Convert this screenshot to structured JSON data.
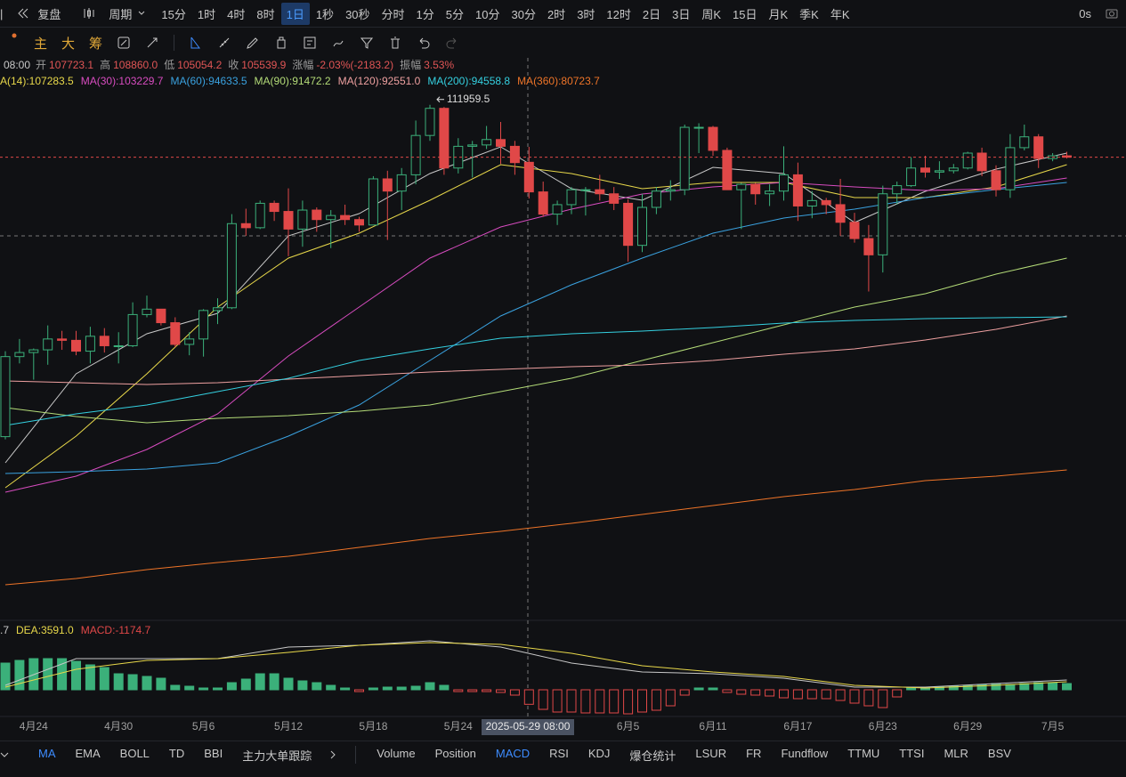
{
  "toolbar": {
    "replay": "复盘",
    "period": "周期",
    "intervals": [
      "15分",
      "1时",
      "4时",
      "8时",
      "1日",
      "1秒",
      "30秒",
      "分时",
      "1分",
      "5分",
      "10分",
      "30分",
      "2时",
      "3时",
      "12时",
      "2日",
      "3日",
      "周K",
      "15日",
      "月K",
      "季K",
      "年K"
    ],
    "active": "1日",
    "timer": "0s"
  },
  "drawing_toolbar": {
    "labels": [
      "主",
      "大",
      "筹"
    ]
  },
  "info": {
    "time": "08:00",
    "fields": [
      {
        "label": "开",
        "value": "107723.1"
      },
      {
        "label": "高",
        "value": "108860.0"
      },
      {
        "label": "低",
        "value": "105054.2"
      },
      {
        "label": "收",
        "value": "105539.9"
      },
      {
        "label": "涨幅",
        "value": "-2.03%(-2183.2)"
      },
      {
        "label": "振幅",
        "value": "3.53%"
      }
    ]
  },
  "chart": {
    "type": "candlestick",
    "categories": [
      null,
      null,
      "4月24",
      null,
      null,
      null,
      null,
      null,
      "4月30",
      null,
      null,
      null,
      null,
      null,
      "5月6",
      null,
      null,
      null,
      null,
      null,
      "5月12",
      null,
      null,
      null,
      null,
      null,
      "5月18",
      null,
      null,
      null,
      null,
      null,
      "5月24",
      null,
      null,
      null,
      null,
      null,
      null,
      null,
      null,
      null,
      null,
      null,
      "6月5",
      null,
      null,
      null,
      null,
      null,
      "6月11",
      null,
      null,
      null,
      null,
      null,
      "6月17",
      null,
      null,
      null,
      null,
      null,
      "6月23",
      null,
      null,
      null,
      null,
      null,
      "6月29",
      null,
      null,
      null,
      null,
      null,
      "7月5",
      null
    ],
    "crosshair_label": "2025-05-29 08:00",
    "ylim": [
      74420,
      115420
    ],
    "up_color": "#3bb07a",
    "down_color": "#e04848",
    "candles": {
      "open": [
        87500,
        93400,
        93700,
        93900,
        94700,
        94600,
        93800,
        94900,
        94200,
        94200,
        96500,
        96900,
        95900,
        94300,
        94700,
        96800,
        97000,
        103200,
        102900,
        104700,
        104100,
        102800,
        104200,
        103500,
        103800,
        103500,
        103100,
        106500,
        105600,
        106800,
        109700,
        111700,
        107300,
        108900,
        109000,
        109400,
        108900,
        107723.1,
        105540,
        103900,
        104600,
        105700,
        105700,
        105400,
        104700,
        101600,
        104400,
        105600,
        105700,
        110300,
        110300,
        108600,
        105700,
        106100,
        105400,
        105600,
        106800,
        104500,
        104900,
        104600,
        103300,
        102100,
        100900,
        105400,
        106000,
        107300,
        107000,
        107100,
        107300,
        108400,
        107100,
        105700,
        108800,
        109600,
        108000,
        108200
      ],
      "high": [
        93800,
        94700,
        94000,
        95700,
        95300,
        95300,
        95600,
        95500,
        95200,
        97400,
        97900,
        96900,
        96300,
        95200,
        96900,
        97700,
        103900,
        104300,
        104900,
        104900,
        105800,
        104900,
        104400,
        104200,
        104600,
        103700,
        106700,
        107100,
        107300,
        110800,
        111959.5,
        111800,
        109500,
        109300,
        110400,
        110700,
        109300,
        108860,
        106300,
        104900,
        105900,
        105900,
        106800,
        105900,
        105000,
        105400,
        105900,
        106400,
        110500,
        110600,
        110400,
        108800,
        106200,
        106200,
        106100,
        108900,
        107700,
        105600,
        105100,
        106500,
        104000,
        103100,
        106000,
        106300,
        108100,
        108200,
        107800,
        107600,
        108500,
        108800,
        107500,
        109800,
        110500,
        109800,
        108400,
        108500
      ],
      "low": [
        87300,
        92900,
        91700,
        92800,
        93900,
        93500,
        92900,
        93700,
        92900,
        94100,
        96300,
        95700,
        94100,
        93500,
        93400,
        95800,
        96900,
        102300,
        102800,
        103400,
        100800,
        101500,
        102600,
        101400,
        103100,
        102600,
        103100,
        102000,
        104200,
        106100,
        109300,
        106800,
        106900,
        106600,
        108700,
        107600,
        106800,
        105054.2,
        103700,
        103100,
        103900,
        103800,
        104900,
        104200,
        100400,
        101100,
        103900,
        104900,
        105300,
        108400,
        108200,
        105700,
        102800,
        104600,
        104500,
        104900,
        103400,
        103600,
        103900,
        102300,
        101800,
        98200,
        99600,
        104600,
        105900,
        106600,
        106500,
        106900,
        107200,
        106700,
        105200,
        105100,
        108600,
        107300,
        107800,
        108000
      ],
      "close": [
        93400,
        93700,
        93900,
        94700,
        94600,
        93800,
        94900,
        94200,
        94200,
        96500,
        96900,
        95900,
        94300,
        94700,
        96800,
        97000,
        103200,
        102900,
        104700,
        104100,
        102800,
        104200,
        103500,
        103800,
        103500,
        103100,
        106500,
        105600,
        106800,
        109700,
        111700,
        107300,
        108900,
        109000,
        109400,
        108900,
        107700,
        105539.9,
        103900,
        104600,
        105700,
        105700,
        105400,
        104700,
        101600,
        104400,
        105600,
        105700,
        110300,
        110300,
        108600,
        105700,
        106100,
        105400,
        105600,
        106800,
        104500,
        104900,
        104600,
        103300,
        102100,
        100900,
        105400,
        106000,
        107300,
        107000,
        107100,
        107300,
        108400,
        107100,
        105700,
        108800,
        109600,
        108000,
        108200,
        108100
      ]
    },
    "ma": [
      {
        "color": "#c8c8c8",
        "x": [
          0,
          5,
          10,
          15,
          20,
          25,
          30,
          35,
          40,
          45,
          50,
          55,
          60,
          65,
          70,
          75
        ],
        "values": [
          85572,
          92132,
          95084,
          96593,
          102300,
          103940,
          106892,
          108860,
          105776,
          104924,
          107350,
          106892,
          103284,
          105580,
          107220,
          108400
        ]
      },
      {
        "label": "A(14):107283.5",
        "color": "#e8d84a",
        "x": [
          0,
          5,
          10,
          15,
          20,
          25,
          30,
          35,
          40,
          45,
          50,
          55,
          60,
          65,
          70,
          75
        ],
        "values": [
          83735,
          87540,
          92132,
          97052,
          100660,
          102497,
          104924,
          107548,
          106892,
          105776,
          106236,
          106236,
          105120,
          105120,
          105908,
          107548
        ]
      },
      {
        "label": "MA(30):103229.7",
        "color": "#d84cc0",
        "x": [
          0,
          5,
          10,
          15,
          20,
          25,
          30,
          35,
          40,
          45,
          50,
          55,
          60,
          65,
          70,
          75
        ],
        "values": [
          83407,
          84588,
          86555,
          89180,
          93444,
          97052,
          100660,
          102956,
          104268,
          105383,
          105908,
          106236,
          105908,
          105645,
          105776,
          106564
        ]
      },
      {
        "label": "MA(60):94633.5",
        "color": "#3aa2e0",
        "x": [
          0,
          5,
          10,
          15,
          20,
          25,
          30,
          35,
          40,
          45,
          50,
          55,
          60,
          65,
          70,
          75
        ],
        "values": [
          84784,
          84916,
          85113,
          85572,
          87540,
          89836,
          93116,
          96396,
          98692,
          100660,
          102497,
          103612,
          104268,
          105120,
          105711,
          106236
        ]
      },
      {
        "label": "MA(90):91472.2",
        "color": "#b4dc78",
        "x": [
          0,
          5,
          10,
          15,
          20,
          25,
          30,
          35,
          40,
          45,
          50,
          55,
          60,
          65,
          70,
          75
        ],
        "values": [
          89639,
          88983,
          88524,
          88852,
          89049,
          89377,
          89836,
          90820,
          91804,
          93116,
          94428,
          95740,
          97052,
          98036,
          99479,
          100660
        ]
      },
      {
        "label": "MA(120):92551.0",
        "color": "#eea0a0",
        "x": [
          0,
          5,
          10,
          15,
          20,
          25,
          30,
          35,
          40,
          45,
          50,
          55,
          60,
          65,
          70,
          75
        ],
        "values": [
          91607,
          91476,
          91345,
          91476,
          91738,
          91999,
          92263,
          92460,
          92656,
          92788,
          93116,
          93575,
          93969,
          94625,
          95412,
          96396
        ]
      },
      {
        "label": "MA(200):94558.8",
        "color": "#34d0e0",
        "x": [
          0,
          5,
          10,
          15,
          20,
          25,
          30,
          35,
          40,
          45,
          50,
          55,
          60,
          65,
          70,
          75
        ],
        "values": [
          88327,
          89180,
          89836,
          90820,
          91804,
          93116,
          93969,
          94756,
          95084,
          95281,
          95543,
          95871,
          96068,
          96199,
          96265,
          96330
        ]
      },
      {
        "label": "MA(360):80723.7",
        "color": "#ee7428",
        "x": [
          0,
          5,
          10,
          15,
          20,
          25,
          30,
          35,
          40,
          45,
          50,
          55,
          60,
          65,
          70,
          75
        ],
        "values": [
          76585,
          77044,
          77700,
          78225,
          78684,
          79340,
          79996,
          80521,
          81111,
          81767,
          82423,
          83079,
          83604,
          84260,
          84588,
          85048
        ]
      }
    ],
    "macd": {
      "ylim": [
        -2160,
        5400
      ],
      "legend": [
        {
          "text": ".7",
          "color": "#c8c8c8"
        },
        {
          "text": "DEA:3591.0",
          "color": "#e8d84a"
        },
        {
          "text": "MACD:-1174.7",
          "color": "#e04848"
        }
      ],
      "hist": [
        2160,
        2376,
        2520,
        2520,
        2520,
        2304,
        2016,
        1800,
        1296,
        1224,
        1080,
        936,
        360,
        288,
        144,
        144,
        576,
        864,
        1296,
        1296,
        936,
        720,
        576,
        360,
        144,
        -144,
        144,
        216,
        216,
        288,
        576,
        360,
        -144,
        -144,
        -144,
        -216,
        -432,
        -1174.7,
        -1584,
        -1800,
        -1800,
        -1872,
        -1872,
        -1872,
        -1944,
        -1800,
        -1656,
        -1296,
        -432,
        144,
        144,
        -216,
        -360,
        -432,
        -504,
        -648,
        -720,
        -720,
        -720,
        -864,
        -1080,
        -1296,
        -1440,
        -576,
        144,
        216,
        216,
        288,
        360,
        432,
        504,
        432,
        504,
        576,
        576,
        504
      ],
      "dif": {
        "color": "#c8c8c8",
        "x": [
          0,
          5,
          10,
          15,
          20,
          25,
          30,
          35,
          40,
          45,
          50,
          55,
          60,
          65,
          70,
          75
        ],
        "values": [
          360,
          2520,
          2520,
          2520,
          3456,
          3600,
          3960,
          3456,
          2160,
          1440,
          1296,
          936,
          216,
          216,
          504,
          792
        ]
      },
      "dea": {
        "color": "#e8d84a",
        "x": [
          0,
          5,
          10,
          15,
          20,
          25,
          30,
          35,
          40,
          45,
          50,
          55,
          60,
          65,
          70,
          75
        ],
        "values": [
          216,
          1656,
          2376,
          2520,
          3024,
          3600,
          3816,
          3672,
          2952,
          1944,
          1440,
          1080,
          360,
          144,
          360,
          648
        ]
      }
    }
  },
  "indicator_tabs": {
    "main": [
      "MA",
      "EMA",
      "BOLL",
      "TD",
      "BBI",
      "主力大单跟踪"
    ],
    "main_active": "MA",
    "sub": [
      "Volume",
      "Position",
      "MACD",
      "RSI",
      "KDJ",
      "爆仓统计",
      "LSUR",
      "FR",
      "Fundflow",
      "TTMU",
      "TTSI",
      "MLR",
      "BSV"
    ],
    "sub_active": "MACD"
  }
}
